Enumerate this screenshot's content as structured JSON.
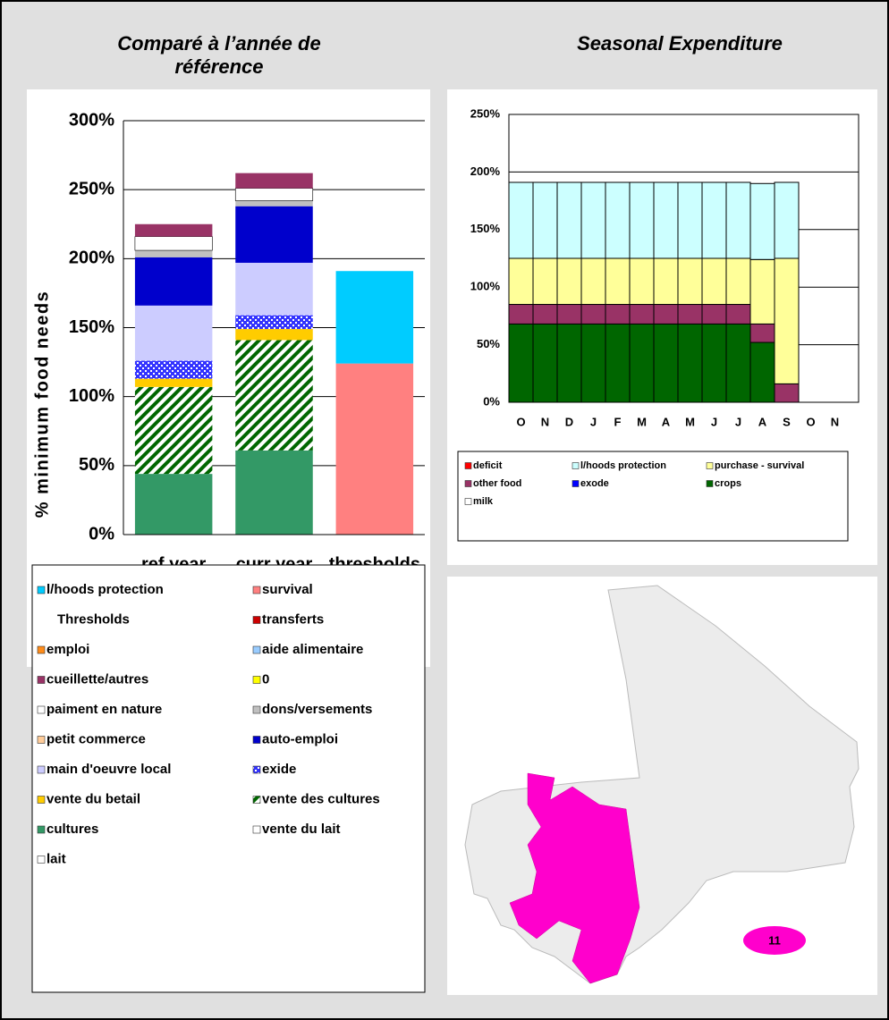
{
  "chart_data": [
    {
      "type": "bar",
      "stacked": true,
      "title": "Comparé à l’année de référence",
      "ylabel": "% minimum food needs",
      "categories": [
        "ref year",
        "curr year",
        "thresholds"
      ],
      "ylim": [
        0,
        300
      ],
      "yticks": [
        {
          "value": 0,
          "label": "0%"
        },
        {
          "value": 50,
          "label": "50%"
        },
        {
          "value": 100,
          "label": "100%"
        },
        {
          "value": 150,
          "label": "150%"
        },
        {
          "value": 200,
          "label": "200%"
        },
        {
          "value": 250,
          "label": "250%"
        },
        {
          "value": 300,
          "label": "300%"
        }
      ],
      "grid": true,
      "series": [
        {
          "name": "l/hoods protection",
          "color": "#00ccff",
          "values": [
            0,
            0,
            67
          ]
        },
        {
          "name": "survival",
          "color": "#ff8080",
          "values": [
            0,
            0,
            124
          ]
        },
        {
          "name": "Thresholds",
          "color": null,
          "values": [
            0,
            0,
            0
          ]
        },
        {
          "name": "transferts",
          "color": "#cc0000",
          "values": [
            0,
            0,
            0
          ]
        },
        {
          "name": "emploi",
          "color": "#ff8c1a",
          "values": [
            0,
            0,
            0
          ]
        },
        {
          "name": "aide alimentaire",
          "color": "#99ccff",
          "values": [
            0,
            0,
            0
          ]
        },
        {
          "name": "cueillette/autres",
          "color": "#993366",
          "values": [
            9,
            11,
            0
          ]
        },
        {
          "name": "0",
          "color": "#ffff00",
          "values": [
            0,
            0,
            0
          ]
        },
        {
          "name": "paiment en nature",
          "color": "#ffffff",
          "values": [
            10,
            9,
            0
          ]
        },
        {
          "name": "dons/versements",
          "color": "#c0c0c0",
          "values": [
            5,
            4,
            0
          ]
        },
        {
          "name": "petit commerce",
          "color": "#ffcc99",
          "values": [
            0,
            0,
            0
          ]
        },
        {
          "name": "auto-emploi",
          "color": "#0000cc",
          "values": [
            35,
            41,
            0
          ]
        },
        {
          "name": "main d'oeuvre local",
          "color": "#ccccff",
          "values": [
            40,
            38,
            0
          ]
        },
        {
          "name": "exide",
          "color": "#3333ff",
          "pattern": "checker",
          "values": [
            13,
            10,
            0
          ]
        },
        {
          "name": "vente du betail",
          "color": "#ffcc00",
          "values": [
            6,
            8,
            0
          ]
        },
        {
          "name": "vente des cultures",
          "color": "#006600",
          "pattern": "hatch",
          "values": [
            63,
            80,
            0
          ]
        },
        {
          "name": "cultures",
          "color": "#339966",
          "values": [
            44,
            61,
            0
          ]
        },
        {
          "name": "vente du lait",
          "color": "#ffffff",
          "values": [
            0,
            0,
            0
          ]
        },
        {
          "name": "lait",
          "color": "#ffffff",
          "values": [
            0,
            0,
            0
          ]
        }
      ]
    },
    {
      "type": "bar",
      "stacked": true,
      "title": "Seasonal Expenditure",
      "categories": [
        "O",
        "N",
        "D",
        "J",
        "F",
        "M",
        "A",
        "M",
        "J",
        "J",
        "A",
        "S",
        "O",
        "N"
      ],
      "ylim": [
        0,
        250
      ],
      "yticks": [
        {
          "value": 0,
          "label": "0%"
        },
        {
          "value": 50,
          "label": "50%"
        },
        {
          "value": 100,
          "label": "100%"
        },
        {
          "value": 150,
          "label": "150%"
        },
        {
          "value": 200,
          "label": "200%"
        },
        {
          "value": 250,
          "label": "250%"
        }
      ],
      "grid": true,
      "series": [
        {
          "name": "deficit",
          "color": "#ff0000",
          "values": [
            0,
            0,
            0,
            0,
            0,
            0,
            0,
            0,
            0,
            0,
            0,
            0,
            0,
            0
          ]
        },
        {
          "name": "l/hoods protection",
          "color": "#ccffff",
          "values": [
            66,
            66,
            66,
            66,
            66,
            66,
            66,
            66,
            66,
            66,
            66,
            66,
            0,
            0
          ]
        },
        {
          "name": "purchase - survival",
          "color": "#ffff99",
          "values": [
            40,
            40,
            40,
            40,
            40,
            40,
            40,
            40,
            40,
            40,
            56,
            109,
            0,
            0
          ]
        },
        {
          "name": "other food",
          "color": "#993366",
          "values": [
            17,
            17,
            17,
            17,
            17,
            17,
            17,
            17,
            17,
            17,
            16,
            16,
            0,
            0
          ]
        },
        {
          "name": "exode",
          "color": "#0000ff",
          "values": [
            0,
            0,
            0,
            0,
            0,
            0,
            0,
            0,
            0,
            0,
            0,
            0,
            0,
            0
          ]
        },
        {
          "name": "crops",
          "color": "#006600",
          "values": [
            68,
            68,
            68,
            68,
            68,
            68,
            68,
            68,
            68,
            68,
            52,
            0,
            0,
            0
          ]
        },
        {
          "name": "milk",
          "color": "#ffffff",
          "values": [
            0,
            0,
            0,
            0,
            0,
            0,
            0,
            0,
            0,
            0,
            0,
            0,
            0,
            0
          ]
        }
      ]
    }
  ],
  "map": {
    "label": "11"
  }
}
